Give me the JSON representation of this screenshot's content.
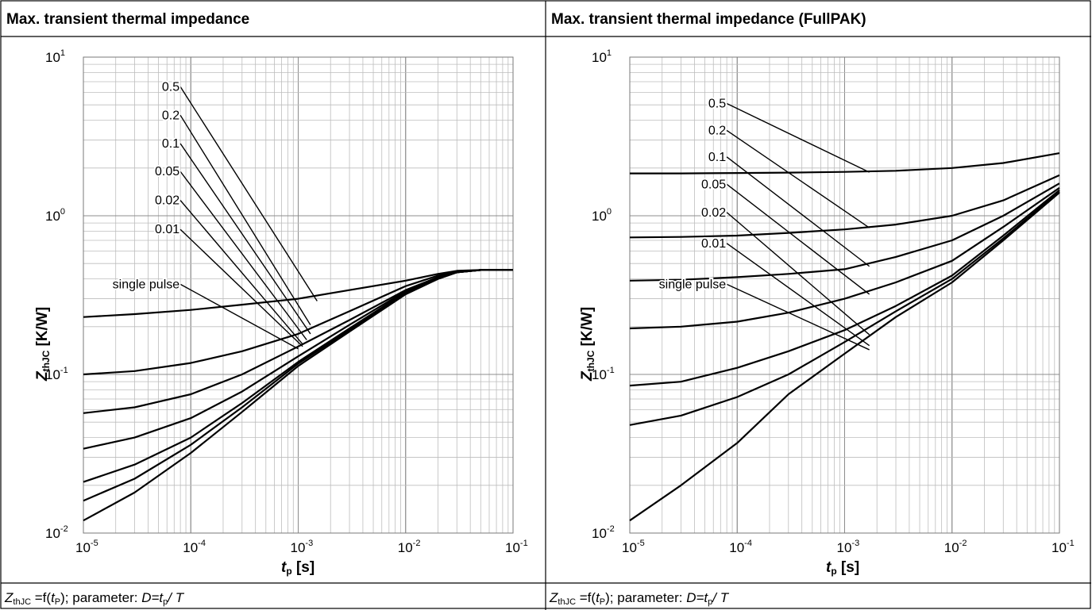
{
  "header": {
    "left_title": "Max. transient thermal impedance",
    "right_title": "Max. transient thermal impedance (FullPAK)"
  },
  "caption": {
    "left": {
      "symbol": "Z",
      "symbol_sub": "thJC",
      "eq": " =f(",
      "arg": "t",
      "arg_sub": "P",
      "rest": "); parameter: ",
      "d_label": "D=t",
      "d_sub": "p",
      "d_rest": "/ T"
    },
    "right": {
      "symbol": "Z",
      "symbol_sub": "thJC",
      "eq": " =f(",
      "arg": "t",
      "arg_sub": "P",
      "rest": "); parameter: ",
      "d_label": "D=t",
      "d_sub": "p",
      "d_rest": "/ T"
    }
  },
  "chart_data": [
    {
      "type": "line",
      "title": "Max. transient thermal impedance",
      "xlabel": "tp [s]",
      "ylabel": "ZthJC [K/W]",
      "x_scale": "log",
      "y_scale": "log",
      "xlim": [
        1e-05,
        0.1
      ],
      "ylim": [
        0.01,
        10
      ],
      "grid": true,
      "x_tick_labels": [
        {
          "value": 1e-05,
          "base": "10",
          "exp": "-5"
        },
        {
          "value": 0.0001,
          "base": "10",
          "exp": "-4"
        },
        {
          "value": 0.001,
          "base": "10",
          "exp": "-3"
        },
        {
          "value": 0.01,
          "base": "10",
          "exp": "-2"
        },
        {
          "value": 0.1,
          "base": "10",
          "exp": "-1"
        }
      ],
      "y_tick_labels": [
        {
          "value": 0.01,
          "base": "10",
          "exp": "-2"
        },
        {
          "value": 0.1,
          "base": "10",
          "exp": "-1"
        },
        {
          "value": 1,
          "base": "10",
          "exp": "0"
        },
        {
          "value": 10,
          "base": "10",
          "exp": "1"
        }
      ],
      "series": [
        {
          "name": "0.5",
          "label_at": [
            8e-05,
            6.5
          ],
          "line_end": [
            0.0015,
            0.29
          ],
          "points": [
            [
              1e-05,
              0.23
            ],
            [
              3e-05,
              0.24
            ],
            [
              0.0001,
              0.255
            ],
            [
              0.0003,
              0.275
            ],
            [
              0.001,
              0.3
            ],
            [
              0.003,
              0.34
            ],
            [
              0.01,
              0.39
            ],
            [
              0.02,
              0.43
            ],
            [
              0.03,
              0.45
            ],
            [
              0.05,
              0.455
            ],
            [
              0.1,
              0.455
            ]
          ]
        },
        {
          "name": "0.2",
          "label_at": [
            8e-05,
            4.3
          ],
          "line_end": [
            0.0013,
            0.205
          ],
          "points": [
            [
              1e-05,
              0.1
            ],
            [
              3e-05,
              0.105
            ],
            [
              0.0001,
              0.118
            ],
            [
              0.0003,
              0.14
            ],
            [
              0.001,
              0.18
            ],
            [
              0.003,
              0.25
            ],
            [
              0.01,
              0.36
            ],
            [
              0.02,
              0.42
            ],
            [
              0.03,
              0.445
            ],
            [
              0.05,
              0.455
            ],
            [
              0.1,
              0.455
            ]
          ]
        },
        {
          "name": "0.1",
          "label_at": [
            8e-05,
            2.85
          ],
          "line_end": [
            0.0013,
            0.18
          ],
          "points": [
            [
              1e-05,
              0.057
            ],
            [
              3e-05,
              0.062
            ],
            [
              0.0001,
              0.075
            ],
            [
              0.0003,
              0.1
            ],
            [
              0.001,
              0.15
            ],
            [
              0.003,
              0.22
            ],
            [
              0.01,
              0.34
            ],
            [
              0.02,
              0.41
            ],
            [
              0.03,
              0.44
            ],
            [
              0.05,
              0.455
            ],
            [
              0.1,
              0.455
            ]
          ]
        },
        {
          "name": "0.05",
          "label_at": [
            8e-05,
            1.9
          ],
          "line_end": [
            0.0012,
            0.165
          ],
          "points": [
            [
              1e-05,
              0.034
            ],
            [
              3e-05,
              0.04
            ],
            [
              0.0001,
              0.053
            ],
            [
              0.0003,
              0.078
            ],
            [
              0.001,
              0.13
            ],
            [
              0.003,
              0.205
            ],
            [
              0.01,
              0.335
            ],
            [
              0.02,
              0.405
            ],
            [
              0.03,
              0.44
            ],
            [
              0.05,
              0.455
            ],
            [
              0.1,
              0.455
            ]
          ]
        },
        {
          "name": "0.02",
          "label_at": [
            8e-05,
            1.25
          ],
          "line_end": [
            0.0011,
            0.155
          ],
          "points": [
            [
              1e-05,
              0.021
            ],
            [
              3e-05,
              0.027
            ],
            [
              0.0001,
              0.04
            ],
            [
              0.0003,
              0.066
            ],
            [
              0.001,
              0.12
            ],
            [
              0.003,
              0.195
            ],
            [
              0.01,
              0.33
            ],
            [
              0.02,
              0.405
            ],
            [
              0.03,
              0.44
            ],
            [
              0.05,
              0.455
            ],
            [
              0.1,
              0.455
            ]
          ]
        },
        {
          "name": "0.01",
          "label_at": [
            8e-05,
            0.82
          ],
          "line_end": [
            0.0011,
            0.15
          ],
          "points": [
            [
              1e-05,
              0.016
            ],
            [
              3e-05,
              0.022
            ],
            [
              0.0001,
              0.036
            ],
            [
              0.0003,
              0.062
            ],
            [
              0.001,
              0.117
            ],
            [
              0.003,
              0.19
            ],
            [
              0.01,
              0.325
            ],
            [
              0.02,
              0.4
            ],
            [
              0.03,
              0.44
            ],
            [
              0.05,
              0.455
            ],
            [
              0.1,
              0.455
            ]
          ]
        },
        {
          "name": "single pulse",
          "label_at": [
            8e-05,
            0.37
          ],
          "line_end": [
            0.001,
            0.145
          ],
          "points": [
            [
              1e-05,
              0.012
            ],
            [
              3e-05,
              0.018
            ],
            [
              0.0001,
              0.032
            ],
            [
              0.0003,
              0.058
            ],
            [
              0.001,
              0.113
            ],
            [
              0.003,
              0.186
            ],
            [
              0.01,
              0.32
            ],
            [
              0.02,
              0.4
            ],
            [
              0.03,
              0.44
            ],
            [
              0.05,
              0.455
            ],
            [
              0.1,
              0.455
            ]
          ]
        }
      ]
    },
    {
      "type": "line",
      "title": "Max. transient thermal impedance (FullPAK)",
      "xlabel": "tp [s]",
      "ylabel": "ZthJC [K/W]",
      "x_scale": "log",
      "y_scale": "log",
      "xlim": [
        1e-05,
        0.1
      ],
      "ylim": [
        0.01,
        10
      ],
      "grid": true,
      "x_tick_labels": [
        {
          "value": 1e-05,
          "base": "10",
          "exp": "-5"
        },
        {
          "value": 0.0001,
          "base": "10",
          "exp": "-4"
        },
        {
          "value": 0.001,
          "base": "10",
          "exp": "-3"
        },
        {
          "value": 0.01,
          "base": "10",
          "exp": "-2"
        },
        {
          "value": 0.1,
          "base": "10",
          "exp": "-1"
        }
      ],
      "y_tick_labels": [
        {
          "value": 0.01,
          "base": "10",
          "exp": "-2"
        },
        {
          "value": 0.1,
          "base": "10",
          "exp": "-1"
        },
        {
          "value": 1,
          "base": "10",
          "exp": "0"
        },
        {
          "value": 10,
          "base": "10",
          "exp": "1"
        }
      ],
      "series": [
        {
          "name": "0.5",
          "label_at": [
            8e-05,
            5.1
          ],
          "line_end": [
            0.0017,
            1.88
          ],
          "points": [
            [
              1e-05,
              1.85
            ],
            [
              3e-05,
              1.85
            ],
            [
              0.0001,
              1.86
            ],
            [
              0.0003,
              1.87
            ],
            [
              0.001,
              1.89
            ],
            [
              0.003,
              1.92
            ],
            [
              0.01,
              2.0
            ],
            [
              0.03,
              2.15
            ],
            [
              0.1,
              2.48
            ]
          ]
        },
        {
          "name": "0.2",
          "label_at": [
            8e-05,
            3.45
          ],
          "line_end": [
            0.0017,
            0.84
          ],
          "points": [
            [
              1e-05,
              0.73
            ],
            [
              3e-05,
              0.735
            ],
            [
              0.0001,
              0.75
            ],
            [
              0.0003,
              0.78
            ],
            [
              0.001,
              0.82
            ],
            [
              0.003,
              0.88
            ],
            [
              0.01,
              1.0
            ],
            [
              0.03,
              1.25
            ],
            [
              0.1,
              1.8
            ]
          ]
        },
        {
          "name": "0.1",
          "label_at": [
            8e-05,
            2.35
          ],
          "line_end": [
            0.0017,
            0.48
          ],
          "points": [
            [
              1e-05,
              0.39
            ],
            [
              3e-05,
              0.395
            ],
            [
              0.0001,
              0.41
            ],
            [
              0.0003,
              0.43
            ],
            [
              0.001,
              0.46
            ],
            [
              0.003,
              0.55
            ],
            [
              0.01,
              0.7
            ],
            [
              0.03,
              1.0
            ],
            [
              0.1,
              1.6
            ]
          ]
        },
        {
          "name": "0.05",
          "label_at": [
            8e-05,
            1.58
          ],
          "line_end": [
            0.0017,
            0.32
          ],
          "points": [
            [
              1e-05,
              0.195
            ],
            [
              3e-05,
              0.2
            ],
            [
              0.0001,
              0.215
            ],
            [
              0.0003,
              0.245
            ],
            [
              0.001,
              0.3
            ],
            [
              0.003,
              0.38
            ],
            [
              0.01,
              0.52
            ],
            [
              0.03,
              0.85
            ],
            [
              0.1,
              1.5
            ]
          ]
        },
        {
          "name": "0.02",
          "label_at": [
            8e-05,
            1.05
          ],
          "line_end": [
            0.0017,
            0.178
          ],
          "points": [
            [
              1e-05,
              0.085
            ],
            [
              3e-05,
              0.09
            ],
            [
              0.0001,
              0.11
            ],
            [
              0.0003,
              0.14
            ],
            [
              0.001,
              0.19
            ],
            [
              0.003,
              0.27
            ],
            [
              0.01,
              0.42
            ],
            [
              0.03,
              0.75
            ],
            [
              0.1,
              1.45
            ]
          ]
        },
        {
          "name": "0.01",
          "label_at": [
            8e-05,
            0.67
          ],
          "line_end": [
            0.0017,
            0.152
          ],
          "points": [
            [
              1e-05,
              0.048
            ],
            [
              3e-05,
              0.055
            ],
            [
              0.0001,
              0.072
            ],
            [
              0.0003,
              0.1
            ],
            [
              0.001,
              0.16
            ],
            [
              0.003,
              0.25
            ],
            [
              0.01,
              0.4
            ],
            [
              0.03,
              0.72
            ],
            [
              0.1,
              1.42
            ]
          ]
        },
        {
          "name": "single pulse",
          "label_at": [
            8e-05,
            0.37
          ],
          "line_end": [
            0.0017,
            0.143
          ],
          "points": [
            [
              1e-05,
              0.012
            ],
            [
              3e-05,
              0.02
            ],
            [
              0.0001,
              0.037
            ],
            [
              0.0003,
              0.075
            ],
            [
              0.001,
              0.135
            ],
            [
              0.003,
              0.23
            ],
            [
              0.01,
              0.38
            ],
            [
              0.03,
              0.7
            ],
            [
              0.1,
              1.4
            ]
          ]
        }
      ]
    }
  ]
}
